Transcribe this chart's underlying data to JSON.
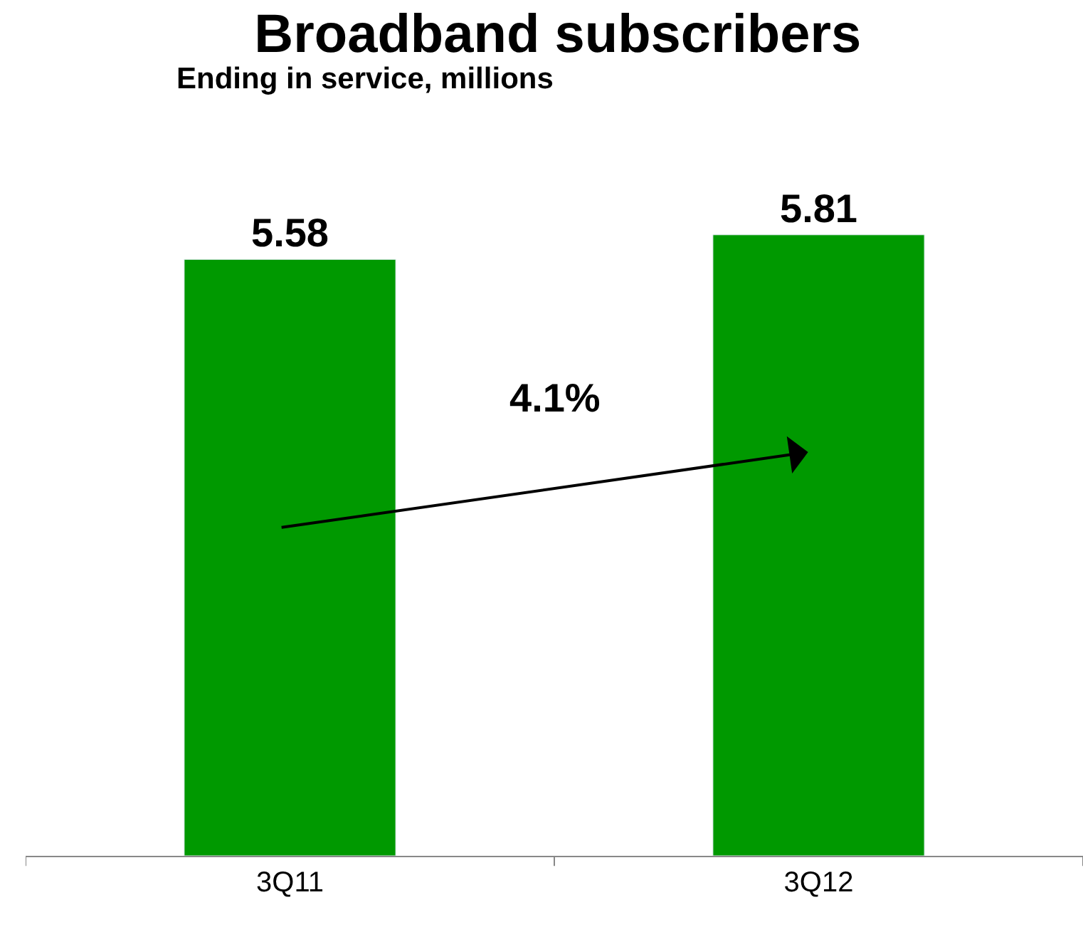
{
  "chart_data": {
    "type": "bar",
    "title": "Broadband subscribers",
    "subtitle": "Ending in service, millions",
    "categories": [
      "3Q11",
      "3Q12"
    ],
    "values": [
      5.58,
      5.81
    ],
    "color": "#009900",
    "data_labels": true,
    "annotations": [
      "4.1%"
    ]
  }
}
